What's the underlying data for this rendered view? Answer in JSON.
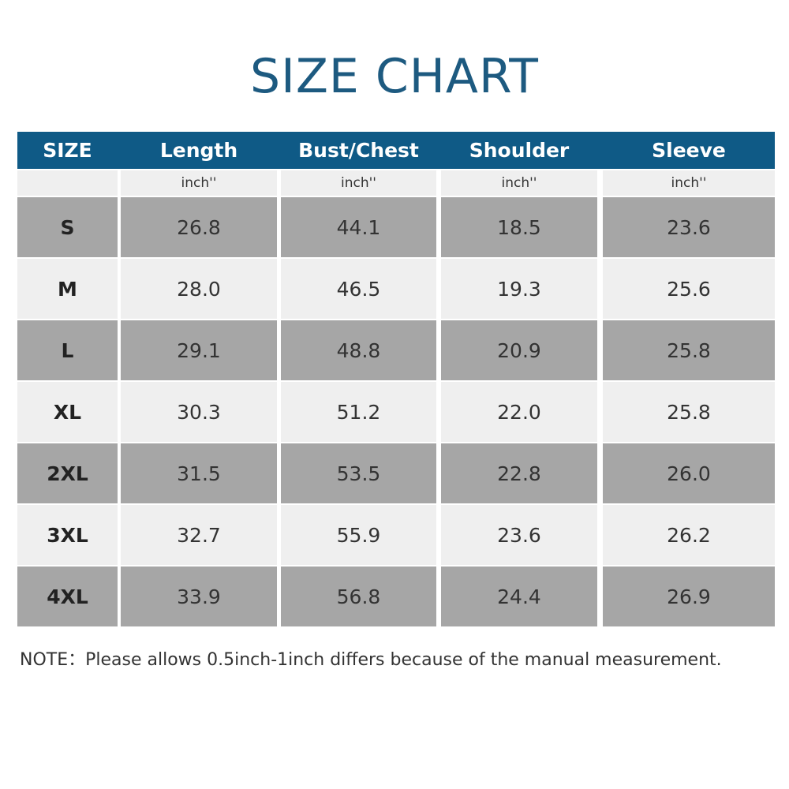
{
  "title": "SIZE CHART",
  "table": {
    "header": [
      "SIZE",
      "Length",
      "Bust/Chest",
      "Shoulder",
      "Sleeve"
    ],
    "units": [
      "inch''",
      "inch''",
      "inch''",
      "inch''"
    ],
    "rows": [
      [
        "S",
        "26.8",
        "44.1",
        "18.5",
        "23.6"
      ],
      [
        "M",
        "28.0",
        "46.5",
        "19.3",
        "25.6"
      ],
      [
        "L",
        "29.1",
        "48.8",
        "20.9",
        "25.8"
      ],
      [
        "XL",
        "30.3",
        "51.2",
        "22.0",
        "25.8"
      ],
      [
        "2XL",
        "31.5",
        "53.5",
        "22.8",
        "26.0"
      ],
      [
        "3XL",
        "32.7",
        "55.9",
        "23.6",
        "26.2"
      ],
      [
        "4XL",
        "33.9",
        "56.8",
        "24.4",
        "26.9"
      ]
    ]
  },
  "note": "NOTE：Please allows 0.5inch-1inch differs because of the manual measurement."
}
